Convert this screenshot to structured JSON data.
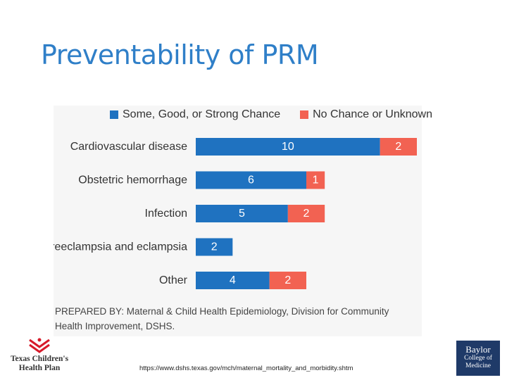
{
  "slide": {
    "title": "Preventability of PRM",
    "url": "https://www.dshs.texas.gov/mch/maternal_mortality_and_morbidity.shtm"
  },
  "logos": {
    "tch_line1": "Texas Children's",
    "tch_line2": "Health Plan",
    "bcm_line1": "Baylor",
    "bcm_line2": "College of",
    "bcm_line3": "Medicine"
  },
  "caption": "PREPARED BY: Maternal & Child Health Epidemiology, Division for Community Health Improvement, DSHS.",
  "chart_data": {
    "type": "bar",
    "orientation": "horizontal",
    "stacked": true,
    "categories": [
      "Cardiovascular disease",
      "Obstetric hemorrhage",
      "Infection",
      "Preeclampsia and eclampsia",
      "Other"
    ],
    "series": [
      {
        "name": "Some, Good, or Strong Chance",
        "values": [
          10,
          6,
          5,
          2,
          4
        ],
        "color": "#1f72c0"
      },
      {
        "name": "No Chance or Unknown",
        "values": [
          2,
          1,
          2,
          0,
          2
        ],
        "color": "#f26252"
      }
    ],
    "title": "",
    "xlabel": "",
    "ylabel": "",
    "xlim": [
      0,
      12
    ],
    "grid": false,
    "legend": "top",
    "data_labels": true
  }
}
